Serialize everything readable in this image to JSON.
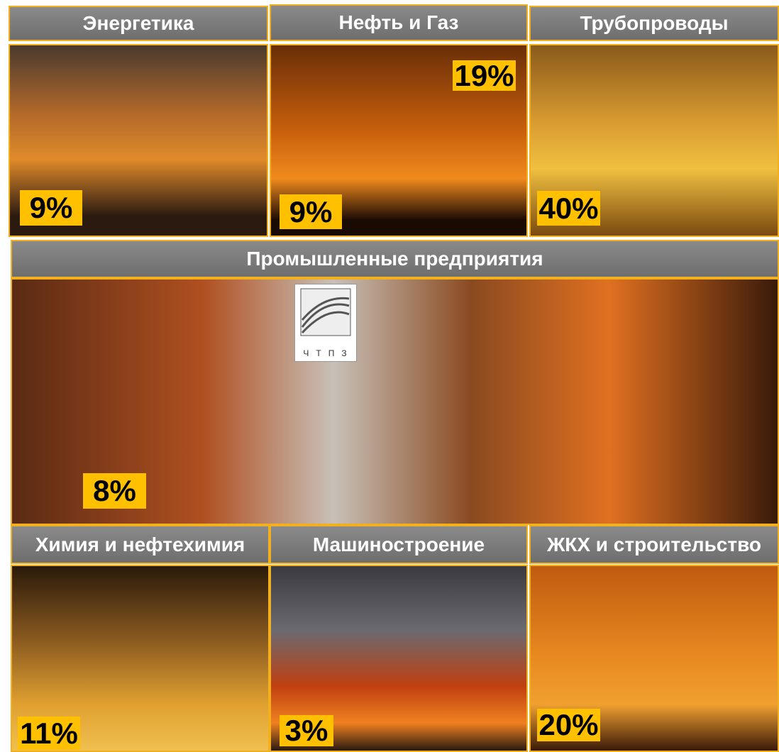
{
  "panels": [
    {
      "title": "Энергетика",
      "labels": [
        "9%"
      ]
    },
    {
      "title": "Нефть и Газ",
      "labels": [
        "19%",
        "9%"
      ]
    },
    {
      "title": "Трубопроводы",
      "labels": [
        "40%"
      ]
    },
    {
      "title": "Промышленные предприятия",
      "labels": [
        "8%"
      ]
    },
    {
      "title": "Химия и нефтехимия",
      "labels": [
        "11%"
      ]
    },
    {
      "title": "Машиностроение",
      "labels": [
        "3%"
      ]
    },
    {
      "title": "ЖКХ и строительство",
      "labels": [
        "20%"
      ]
    }
  ],
  "logo": "ЧТПЗ"
}
